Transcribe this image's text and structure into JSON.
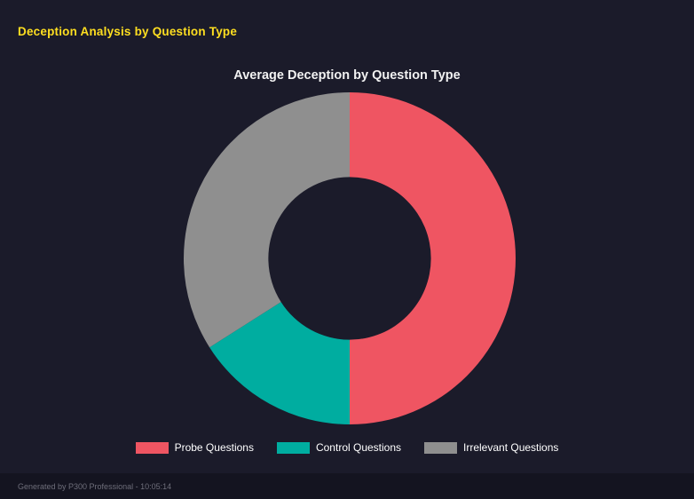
{
  "page": {
    "title": "Deception Analysis by Question Type",
    "footer": "Generated by P300 Professional - 10:05:14"
  },
  "chart_data": {
    "type": "pie",
    "style": "donut",
    "title": "Average Deception by Question Type",
    "categories": [
      "Probe Questions",
      "Control Questions",
      "Irrelevant Questions"
    ],
    "values": [
      50,
      16,
      34
    ],
    "unit": "percent_of_ring",
    "colors": [
      "#ef5562",
      "#00ada0",
      "#8f8f8f"
    ],
    "legend_position": "bottom",
    "inner_radius_ratio": 0.49,
    "start_angle_deg": 0,
    "direction": "clockwise"
  },
  "colors": {
    "background": "#1b1b2a",
    "footer_background": "#141420",
    "page_title": "#ffdf20",
    "chart_title": "#f2f2f2",
    "legend_text": "#ffffff",
    "footer_text": "#6e6e7a"
  }
}
